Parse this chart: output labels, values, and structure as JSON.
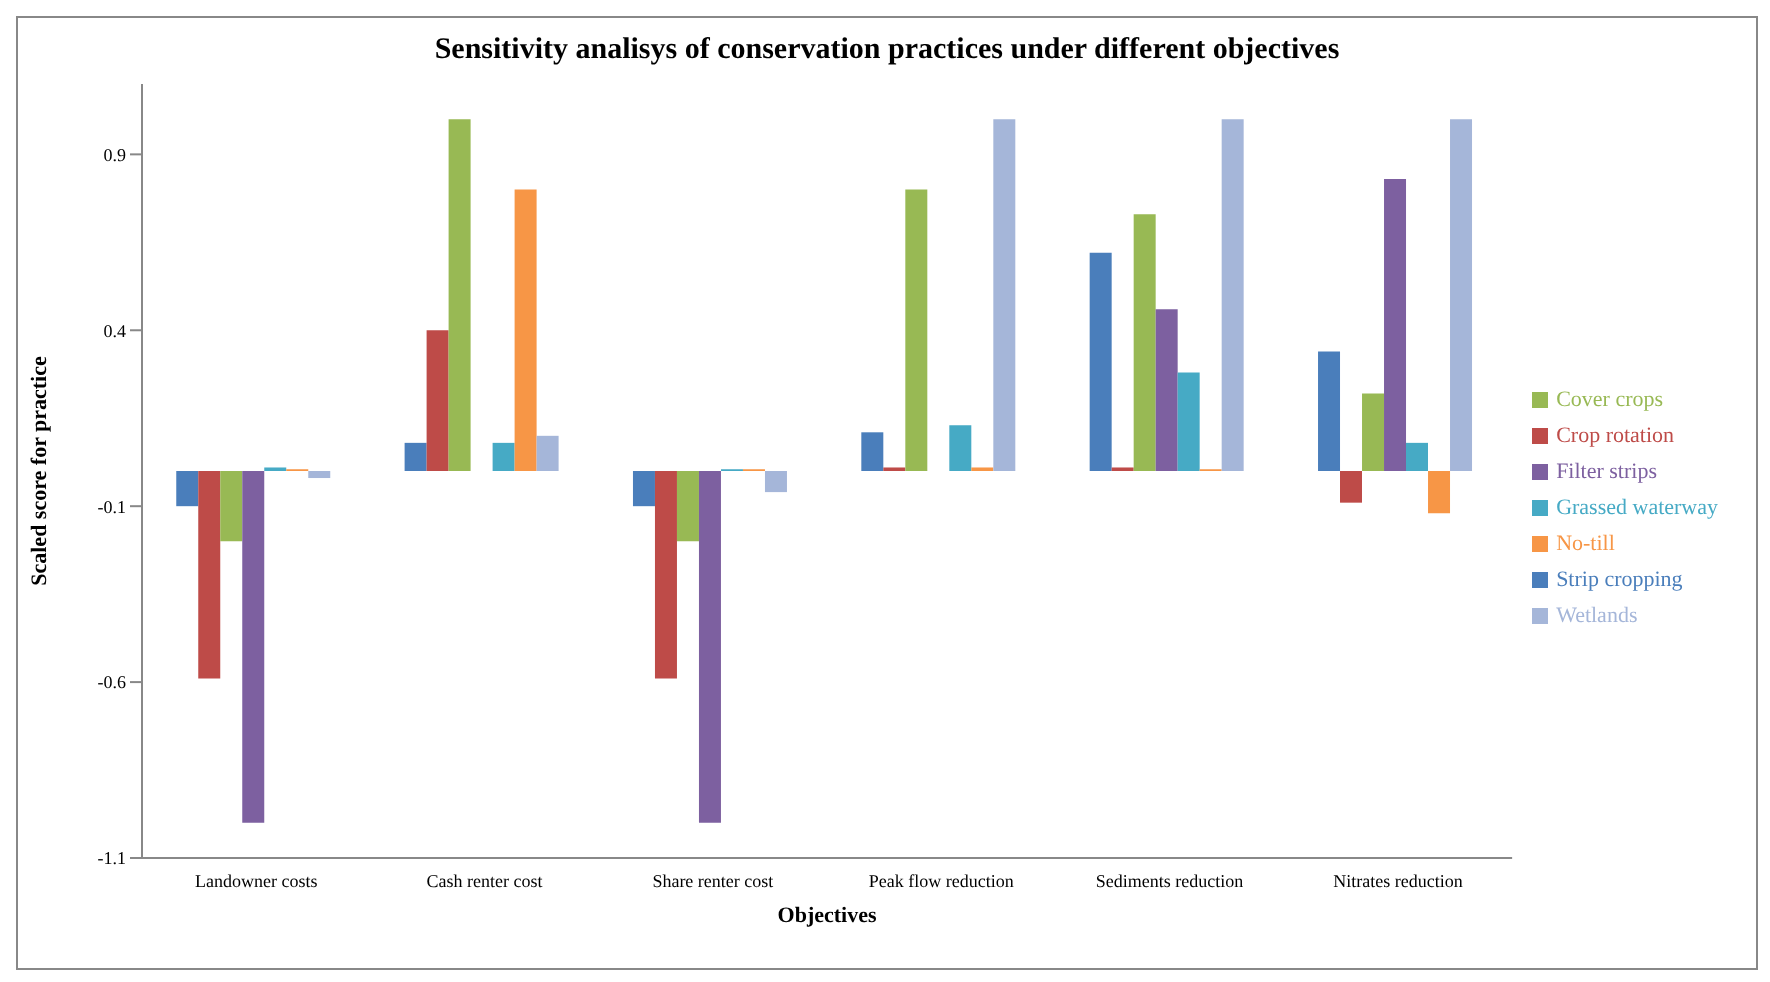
{
  "chart_data": {
    "type": "bar",
    "title": "Sensitivity analisys of conservation practices under different objectives",
    "xlabel": "Objectives",
    "ylabel": "Scaled score for practice",
    "categories": [
      "Landowner costs",
      "Cash renter cost",
      "Share renter cost",
      "Peak flow reduction",
      "Sediments reduction",
      "Nitrates reduction"
    ],
    "series": [
      {
        "name": "Strip cropping",
        "color": "#4a7ebb",
        "values": [
          -0.1,
          0.08,
          -0.1,
          0.11,
          0.62,
          0.34
        ]
      },
      {
        "name": "Crop rotation",
        "color": "#be4b48",
        "values": [
          -0.59,
          0.4,
          -0.59,
          0.01,
          0.01,
          -0.09
        ]
      },
      {
        "name": "Cover crops",
        "color": "#98b954",
        "values": [
          -0.2,
          1.0,
          -0.2,
          0.8,
          0.73,
          0.22
        ]
      },
      {
        "name": "Filter strips",
        "color": "#7d60a0",
        "values": [
          -1.0,
          0,
          -1.0,
          0,
          0.46,
          0.83
        ]
      },
      {
        "name": "Grassed waterway",
        "color": "#46aac5",
        "values": [
          0.01,
          0.08,
          0.005,
          0.13,
          0.28,
          0.08
        ]
      },
      {
        "name": "No-till",
        "color": "#f79646",
        "values": [
          0.005,
          0.8,
          0.005,
          0.01,
          0.005,
          -0.12
        ]
      },
      {
        "name": "Wetlands",
        "color": "#a5b6d9",
        "values": [
          -0.02,
          0.1,
          -0.06,
          1.0,
          1.0,
          1.0
        ]
      }
    ],
    "ylim": [
      -1.1,
      1.1
    ],
    "yticks": [
      -1.1,
      -0.6,
      -0.1,
      0.4,
      0.9
    ],
    "grid": false,
    "legend": "right"
  }
}
